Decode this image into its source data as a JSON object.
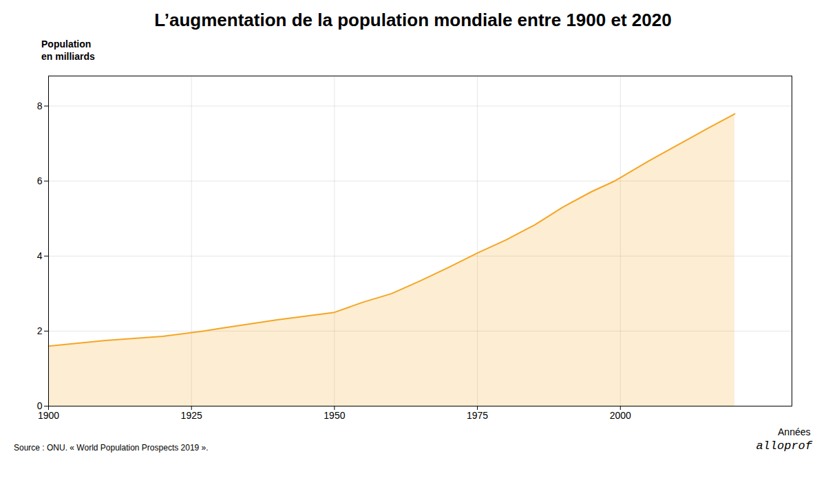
{
  "chart_data": {
    "type": "area",
    "title": "L’augmentation de la population mondiale entre 1900 et 2020",
    "xlabel": "Années",
    "ylabel": "Population\nen milliards",
    "source": "Source : ONU. « World Population Prospects 2019 ».",
    "brand": "alloprof",
    "x": [
      1900,
      1910,
      1920,
      1927,
      1930,
      1940,
      1950,
      1955,
      1960,
      1965,
      1970,
      1975,
      1980,
      1985,
      1990,
      1995,
      1999,
      2000,
      2005,
      2010,
      2015,
      2020
    ],
    "values": [
      1.6,
      1.75,
      1.86,
      2.0,
      2.07,
      2.3,
      2.5,
      2.77,
      3.0,
      3.34,
      3.7,
      4.08,
      4.43,
      4.83,
      5.31,
      5.72,
      6.0,
      6.09,
      6.54,
      6.96,
      7.38,
      7.79
    ],
    "color": "#F5A623",
    "xlim": [
      1900,
      2030
    ],
    "xticks": [
      1900,
      1925,
      1950,
      1975,
      2000
    ],
    "ylim": [
      0,
      8.8
    ],
    "yticks": [
      0,
      2,
      4,
      6,
      8
    ],
    "grid": true
  }
}
